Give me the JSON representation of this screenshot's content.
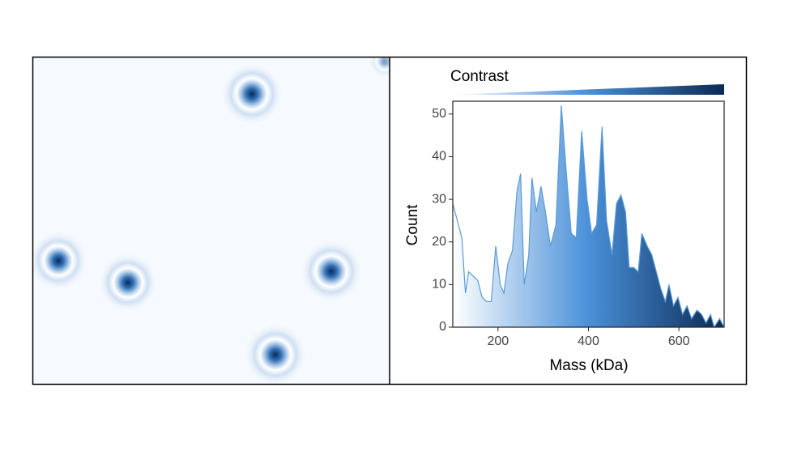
{
  "chart_data": {
    "type": "area",
    "annotation": "Contrast",
    "xlabel": "Mass (kDa)",
    "ylabel": "Count",
    "x": [
      100,
      110,
      120,
      128,
      135,
      145,
      155,
      165,
      175,
      185,
      195,
      205,
      213,
      222,
      232,
      242,
      250,
      258,
      268,
      275,
      285,
      295,
      305,
      316,
      328,
      340,
      352,
      362,
      373,
      385,
      397,
      407,
      418,
      430,
      440,
      452,
      462,
      472,
      482,
      490,
      500,
      510,
      518,
      530,
      540,
      550,
      560,
      570,
      578,
      588,
      598,
      608,
      618,
      628,
      640,
      650,
      660,
      670,
      678,
      690,
      700
    ],
    "values": [
      29,
      25,
      21,
      8,
      13,
      12,
      11,
      7,
      6,
      6,
      19,
      10,
      8,
      15,
      18,
      32,
      36,
      10,
      17,
      35,
      27,
      33,
      27,
      19,
      24,
      52,
      35,
      22,
      21,
      46,
      30,
      22,
      24,
      47,
      25,
      17,
      29,
      31,
      27,
      14,
      14,
      13,
      22,
      19,
      17,
      13,
      9,
      6,
      10,
      5,
      7,
      3,
      5,
      2,
      4,
      3,
      1,
      3,
      0,
      2,
      0
    ],
    "xlim": [
      100,
      700
    ],
    "ylim": [
      0,
      53
    ],
    "xticks": [
      200,
      400,
      600
    ],
    "yticks": [
      0,
      10,
      20,
      30,
      40,
      50
    ],
    "line_color": "#5b9bd5",
    "gradient": [
      "#ffffff",
      "#4a90d9",
      "#0b2a55"
    ]
  }
}
